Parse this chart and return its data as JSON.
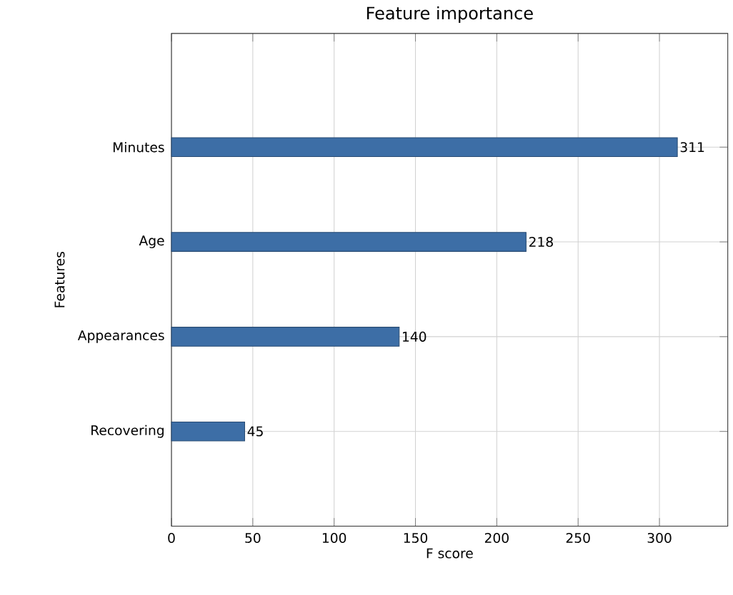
{
  "chart_data": {
    "type": "bar",
    "orientation": "horizontal",
    "title": "Feature importance",
    "xlabel": "F score",
    "ylabel": "Features",
    "categories": [
      "Minutes",
      "Age",
      "Appearances",
      "Recovering"
    ],
    "values": [
      311,
      218,
      140,
      45
    ],
    "color": "#3d6ea6",
    "xlim": [
      0,
      342
    ],
    "xticks": [
      0,
      50,
      100,
      150,
      200,
      250,
      300
    ],
    "grid": true,
    "data_labels": true
  }
}
